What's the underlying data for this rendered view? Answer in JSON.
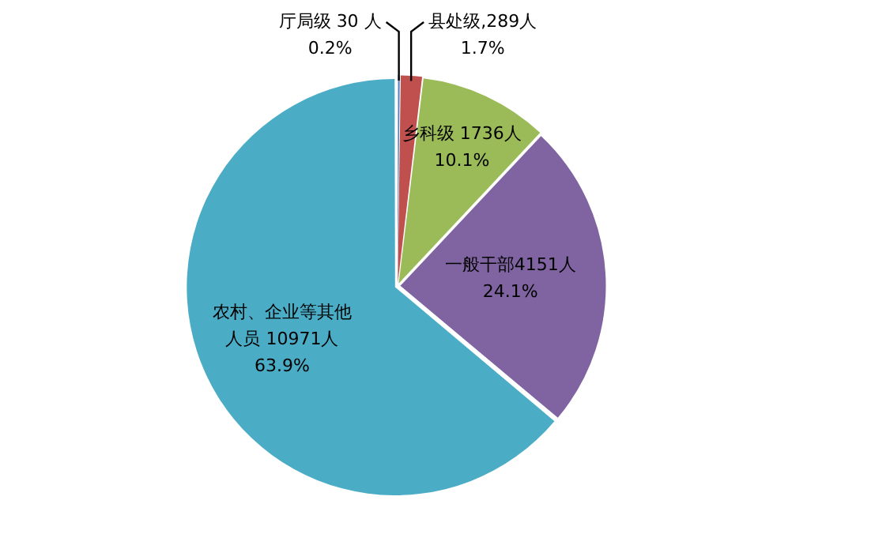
{
  "chart_data": {
    "type": "pie",
    "categories": [
      "厅局级 30 人",
      "县处级,289人",
      "乡科级 1736人",
      "一般干部4151人",
      "农村、企业等其他人员 10971人"
    ],
    "values": [
      0.2,
      1.7,
      10.1,
      24.1,
      63.9
    ],
    "value_labels": [
      "0.2%",
      "1.7%",
      "10.1%",
      "24.1%",
      "63.9%"
    ],
    "colors": [
      "#4f81bd",
      "#c0504d",
      "#9bbb59",
      "#8064a2",
      "#4bacc6"
    ],
    "legend": false
  }
}
